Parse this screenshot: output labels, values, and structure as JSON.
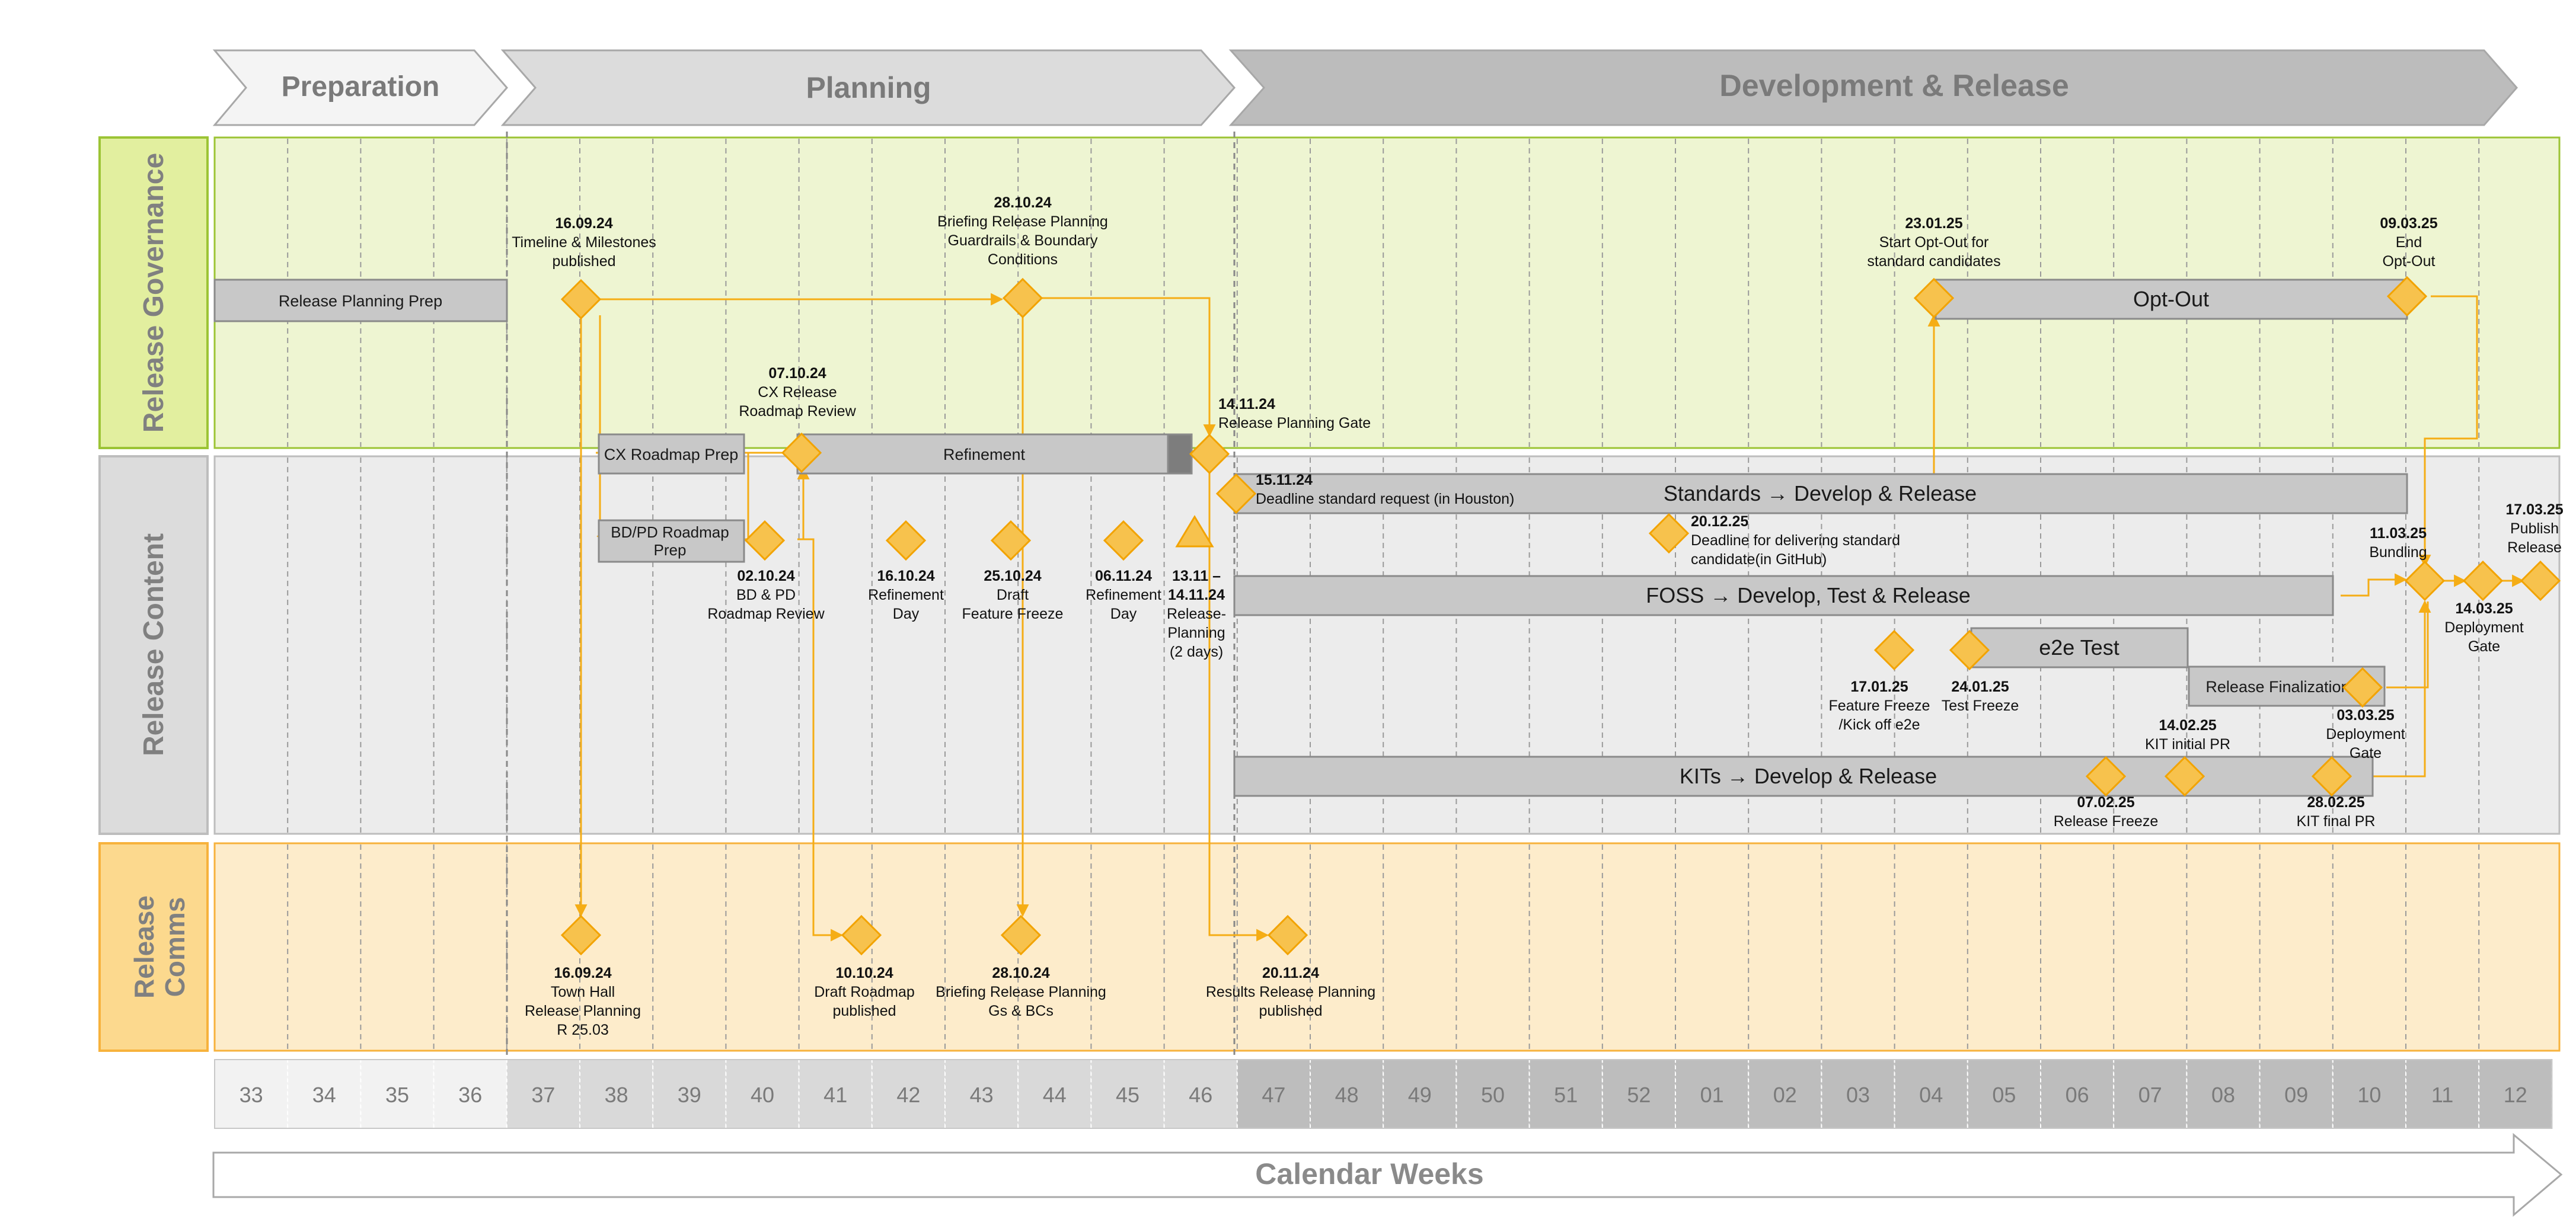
{
  "phases": [
    {
      "label": "Preparation"
    },
    {
      "label": "Planning"
    },
    {
      "label": "Development & Release"
    }
  ],
  "swimlanes": [
    {
      "label": "Release Governance"
    },
    {
      "label": "Release Content"
    },
    {
      "label": "Release Comms"
    }
  ],
  "weeks": [
    "33",
    "34",
    "35",
    "36",
    "37",
    "38",
    "39",
    "40",
    "41",
    "42",
    "43",
    "44",
    "45",
    "46",
    "47",
    "48",
    "49",
    "50",
    "51",
    "52",
    "01",
    "02",
    "03",
    "04",
    "05",
    "06",
    "07",
    "08",
    "09",
    "10",
    "11",
    "12"
  ],
  "calendar_label": "Calendar Weeks",
  "bars": {
    "release_planning_prep": "Release Planning Prep",
    "cx_roadmap_prep": "CX Roadmap Prep",
    "refinement": "Refinement",
    "bdpd_roadmap_prep": [
      "BD/PD  Roadmap",
      "Prep"
    ],
    "opt_out": "Opt-Out",
    "standards": "Standards → Develop & Release",
    "foss": "FOSS → Develop, Test & Release",
    "e2e_test": "e2e Test",
    "release_finalization": "Release Finalization",
    "kits": "KITs → Develop & Release"
  },
  "milestones": {
    "timeline_published": {
      "date": "16.09.24",
      "lines": [
        "Timeline & Milestones",
        "published"
      ]
    },
    "briefing_governance": {
      "date": "28.10.24",
      "lines": [
        "Briefing Release Planning",
        "Guardrails & Boundary",
        "Conditions"
      ]
    },
    "cx_review": {
      "date": "07.10.24",
      "lines": [
        "CX Release",
        "Roadmap Review"
      ]
    },
    "planning_gate": {
      "date": "14.11.24",
      "lines": [
        "Release Planning Gate"
      ]
    },
    "start_opt_out": {
      "date": "23.01.25",
      "lines": [
        "Start Opt-Out for",
        "standard candidates"
      ]
    },
    "end_opt_out": {
      "date": "09.03.25",
      "lines": [
        "End",
        "Opt-Out"
      ]
    },
    "deadline_standard_request": {
      "date": "15.11.24",
      "lines": [
        "Deadline standard request (in  Houston)"
      ]
    },
    "deadline_standard_candidate": {
      "date": "20.12.25",
      "lines": [
        "Deadline for delivering standard",
        "candidate(in GitHub)"
      ]
    },
    "bdpd_review": {
      "date": "02.10.24",
      "lines": [
        "BD & PD",
        "Roadmap Review"
      ]
    },
    "refinement_day_1": {
      "date": "16.10.24",
      "lines": [
        "Refinement",
        "Day"
      ]
    },
    "draft_feature_freeze": {
      "date": "25.10.24",
      "lines": [
        "Draft",
        "Feature Freeze"
      ]
    },
    "refinement_day_2": {
      "date": "06.11.24",
      "lines": [
        "Refinement",
        "Day"
      ]
    },
    "release_planning_2days": {
      "date": "13.11 –",
      "lines": [
        "14.11.24",
        "Release-",
        "Planning",
        "(2 days)"
      ]
    },
    "bundling": {
      "date": "11.03.25",
      "lines": [
        "Bundling"
      ]
    },
    "publish_release": {
      "date": "17.03.25",
      "lines": [
        "Publish",
        "Release"
      ]
    },
    "deployment_gate_1": {
      "date": "14.03.25",
      "lines": [
        "Deployment",
        "Gate"
      ]
    },
    "feature_freeze_e2e": {
      "date": "17.01.25",
      "lines": [
        "Feature Freeze",
        "/Kick off e2e"
      ]
    },
    "test_freeze": {
      "date": "24.01.25",
      "lines": [
        "Test Freeze"
      ]
    },
    "deployment_gate_2": {
      "date": "03.03.25",
      "lines": [
        "Deployment",
        "Gate"
      ]
    },
    "kit_initial_pr": {
      "date": "14.02.25",
      "lines": [
        "KIT initial PR"
      ]
    },
    "release_freeze": {
      "date": "07.02.25",
      "lines": [
        "Release Freeze"
      ]
    },
    "kit_final_pr": {
      "date": "28.02.25",
      "lines": [
        "KIT final PR"
      ]
    },
    "town_hall": {
      "date": "16.09.24",
      "lines": [
        "Town Hall",
        "Release Planning",
        "R 25.03"
      ]
    },
    "draft_roadmap_published": {
      "date": "10.10.24",
      "lines": [
        "Draft Roadmap",
        "published"
      ]
    },
    "briefing_comms": {
      "date": "28.10.24",
      "lines": [
        "Briefing Release Planning",
        "Gs & BCs"
      ]
    },
    "results_published": {
      "date": "20.11.24",
      "lines": [
        "Results Release Planning",
        "published"
      ]
    }
  },
  "colors": {
    "governance_fill": "#eef5d2",
    "governance_header": "#e2ef9f",
    "governance_border": "#9cc435",
    "content_fill": "#ececec",
    "content_header": "#dcdcdc",
    "content_border": "#bdbdbd",
    "comms_fill": "#fdeccb",
    "comms_header": "#fcd98e",
    "comms_border": "#f7b23c",
    "milestone_fill": "#f7c24d",
    "milestone_stroke": "#f2a300",
    "connector": "#f5ad15",
    "bar_fill": "#c8c8c8",
    "bar_stroke": "#8a8a8a"
  }
}
